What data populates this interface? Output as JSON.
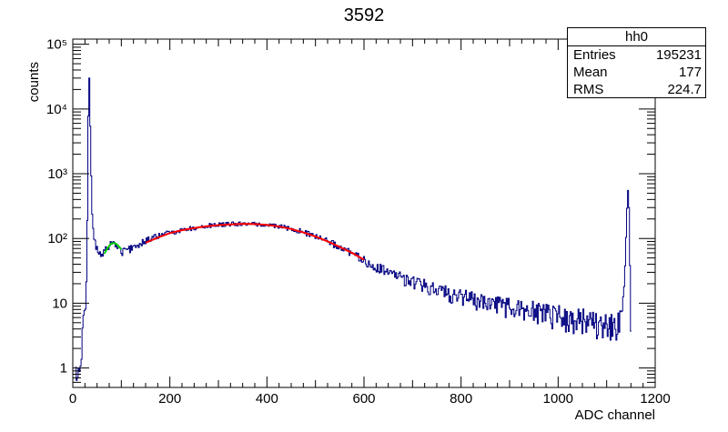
{
  "title": "3592",
  "stats": {
    "name": "hh0",
    "rows": [
      {
        "label": "Entries",
        "value": "195231"
      },
      {
        "label": "Mean",
        "value": "177"
      },
      {
        "label": "RMS",
        "value": "224.7"
      }
    ]
  },
  "chart_data": {
    "type": "histogram-step",
    "title": "3592",
    "xlabel": "ADC channel",
    "ylabel": "counts",
    "xlim": [
      0,
      1200
    ],
    "ylim": [
      0.5,
      120000
    ],
    "yscale": "log",
    "xticks": [
      0,
      200,
      400,
      600,
      800,
      1000,
      1200
    ],
    "xtick_labels": [
      "0",
      "200",
      "400",
      "600",
      "800",
      "1000",
      "1200"
    ],
    "yticks": [
      1,
      10,
      100,
      1000,
      10000,
      100000
    ],
    "ytick_labels": [
      "1",
      "10",
      "10²",
      "10³",
      "10⁴",
      "10⁵"
    ],
    "grid": false,
    "series": [
      {
        "color": "#000080",
        "points": [
          [
            5,
            0.6
          ],
          [
            10,
            0.7
          ],
          [
            15,
            1.5
          ],
          [
            20,
            4
          ],
          [
            25,
            10
          ],
          [
            28,
            40
          ],
          [
            30,
            1000
          ],
          [
            32,
            60000
          ],
          [
            34,
            15000
          ],
          [
            36,
            2000
          ],
          [
            38,
            400
          ],
          [
            40,
            150
          ],
          [
            44,
            95
          ],
          [
            48,
            70
          ],
          [
            52,
            58
          ],
          [
            56,
            55
          ],
          [
            60,
            56
          ],
          [
            64,
            60
          ],
          [
            68,
            68
          ],
          [
            72,
            75
          ],
          [
            76,
            82
          ],
          [
            80,
            88
          ],
          [
            84,
            85
          ],
          [
            88,
            80
          ],
          [
            92,
            72
          ],
          [
            96,
            66
          ],
          [
            100,
            62
          ],
          [
            108,
            65
          ],
          [
            116,
            68
          ],
          [
            124,
            75
          ],
          [
            132,
            80
          ],
          [
            140,
            85
          ],
          [
            150,
            92
          ],
          [
            160,
            100
          ],
          [
            170,
            106
          ],
          [
            180,
            112
          ],
          [
            190,
            118
          ],
          [
            200,
            123
          ],
          [
            210,
            128
          ],
          [
            220,
            133
          ],
          [
            230,
            138
          ],
          [
            240,
            142
          ],
          [
            250,
            146
          ],
          [
            260,
            150
          ],
          [
            270,
            154
          ],
          [
            280,
            157
          ],
          [
            290,
            160
          ],
          [
            300,
            162
          ],
          [
            310,
            164
          ],
          [
            320,
            166
          ],
          [
            330,
            167
          ],
          [
            340,
            168
          ],
          [
            350,
            168
          ],
          [
            360,
            168
          ],
          [
            370,
            167
          ],
          [
            380,
            166
          ],
          [
            390,
            164
          ],
          [
            400,
            161
          ],
          [
            410,
            158
          ],
          [
            420,
            154
          ],
          [
            430,
            150
          ],
          [
            440,
            145
          ],
          [
            450,
            140
          ],
          [
            460,
            134
          ],
          [
            470,
            128
          ],
          [
            480,
            121
          ],
          [
            490,
            115
          ],
          [
            500,
            108
          ],
          [
            510,
            100
          ],
          [
            520,
            93
          ],
          [
            530,
            86
          ],
          [
            540,
            80
          ],
          [
            550,
            73
          ],
          [
            560,
            66
          ],
          [
            570,
            60
          ],
          [
            580,
            55
          ],
          [
            590,
            50
          ],
          [
            600,
            45
          ],
          [
            620,
            38
          ],
          [
            640,
            32
          ],
          [
            660,
            28
          ],
          [
            680,
            24
          ],
          [
            700,
            21
          ],
          [
            720,
            19
          ],
          [
            740,
            17
          ],
          [
            760,
            16
          ],
          [
            780,
            14
          ],
          [
            800,
            13
          ],
          [
            820,
            12
          ],
          [
            840,
            11
          ],
          [
            860,
            10
          ],
          [
            880,
            9.5
          ],
          [
            900,
            9
          ],
          [
            920,
            8.5
          ],
          [
            940,
            8
          ],
          [
            960,
            7.5
          ],
          [
            980,
            7
          ],
          [
            1000,
            6.5
          ],
          [
            1020,
            6
          ],
          [
            1040,
            6
          ],
          [
            1060,
            5.5
          ],
          [
            1080,
            5
          ],
          [
            1100,
            5
          ],
          [
            1120,
            5
          ],
          [
            1130,
            6
          ],
          [
            1136,
            20
          ],
          [
            1140,
            200
          ],
          [
            1144,
            800
          ],
          [
            1147,
            40
          ],
          [
            1150,
            0.6
          ]
        ]
      },
      {
        "color": "#00cc00",
        "points": [
          [
            65,
            58
          ],
          [
            70,
            68
          ],
          [
            75,
            77
          ],
          [
            80,
            84
          ],
          [
            85,
            85
          ],
          [
            90,
            82
          ],
          [
            95,
            75
          ],
          [
            100,
            68
          ]
        ]
      },
      {
        "color": "#ff0000",
        "points": [
          [
            150,
            86
          ],
          [
            175,
            103
          ],
          [
            200,
            121
          ],
          [
            225,
            134
          ],
          [
            250,
            145
          ],
          [
            275,
            154
          ],
          [
            300,
            161
          ],
          [
            325,
            165
          ],
          [
            350,
            168
          ],
          [
            375,
            167
          ],
          [
            400,
            162
          ],
          [
            425,
            153
          ],
          [
            450,
            140
          ],
          [
            475,
            124
          ],
          [
            500,
            107
          ],
          [
            525,
            90
          ],
          [
            550,
            74
          ],
          [
            575,
            60
          ],
          [
            600,
            47
          ]
        ]
      }
    ]
  }
}
